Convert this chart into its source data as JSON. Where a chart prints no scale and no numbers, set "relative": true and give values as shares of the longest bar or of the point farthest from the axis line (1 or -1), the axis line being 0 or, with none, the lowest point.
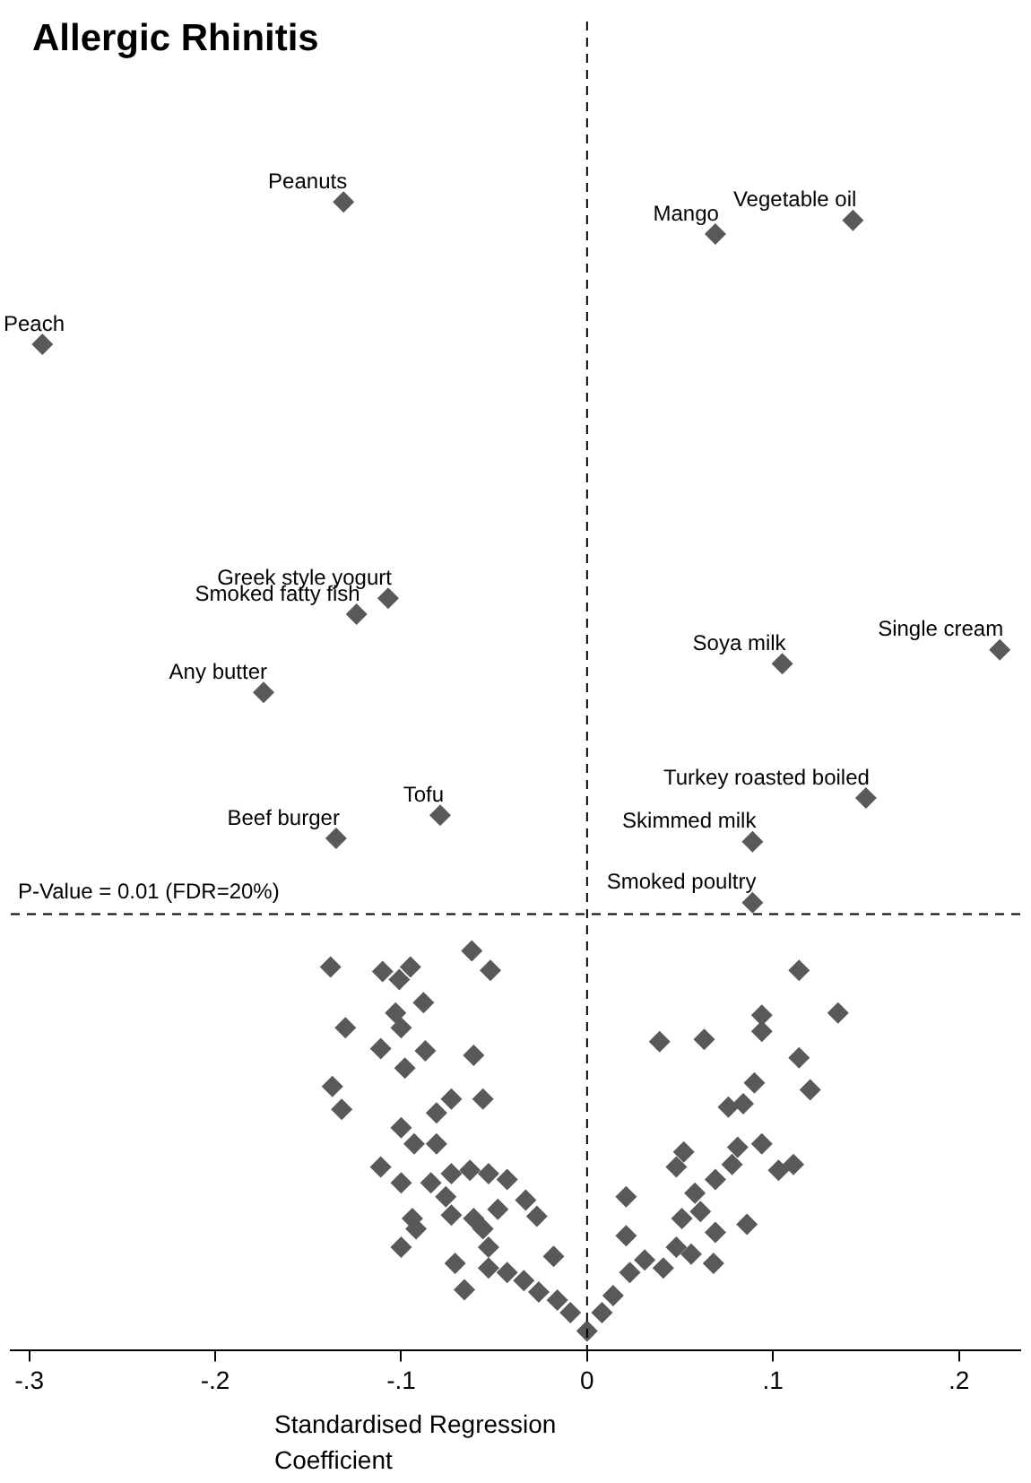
{
  "chart_data": {
    "type": "scatter",
    "title": "Allergic Rhinitis",
    "xlabel": "Standardised Regression Coefficient",
    "relative": true,
    "marker": "diamond",
    "legend": false,
    "tick_labels": "x",
    "xlim": [
      -0.31,
      0.233
    ],
    "xticks": [
      {
        "value": -0.3,
        "label": "-.3"
      },
      {
        "value": -0.2,
        "label": "-.2"
      },
      {
        "value": -0.1,
        "label": "-.1"
      },
      0,
      {
        "value": 0.1,
        "label": ".1"
      },
      {
        "value": 0.2,
        "label": ".2"
      }
    ],
    "ref_lines": [
      {
        "axis": "x",
        "value": 0,
        "line_style": "dashed",
        "color": "#000000"
      },
      {
        "axis": "y",
        "value": 0.38,
        "line_style": "dashed",
        "color": "#000000"
      }
    ],
    "annotations": [
      {
        "text": "Peanuts",
        "x": -0.131,
        "y": 1.0
      },
      {
        "text": "Vegetable oil",
        "x": 0.143,
        "y": 0.984
      },
      {
        "text": "Mango",
        "x": 0.069,
        "y": 0.972
      },
      {
        "text": "Peach",
        "x": -0.293,
        "y": 0.876
      },
      {
        "text": "Greek style yogurt",
        "x": -0.107,
        "y": 0.655
      },
      {
        "text": "Smoked fatty fish",
        "x": -0.124,
        "y": 0.641
      },
      {
        "text": "Single cream",
        "x": 0.222,
        "y": 0.61
      },
      {
        "text": "Any butter",
        "x": -0.174,
        "y": 0.573
      },
      {
        "text": "Soya milk",
        "x": 0.105,
        "y": 0.598
      },
      {
        "text": "Turkey roasted boiled",
        "x": 0.15,
        "y": 0.481
      },
      {
        "text": "Tofu",
        "x": -0.079,
        "y": 0.466
      },
      {
        "text": "Skimmed milk",
        "x": 0.089,
        "y": 0.443
      },
      {
        "text": "Beef burger",
        "x": -0.135,
        "y": 0.446
      },
      {
        "text": "Smoked poultry",
        "x": 0.089,
        "y": 0.39
      },
      {
        "text": "P-Value = 0.01 (FDR=20%)",
        "y": 0.38
      }
    ],
    "series": [
      {
        "color": "#595959",
        "x": [
          -0.131,
          0.143,
          0.069,
          -0.293,
          -0.107,
          -0.124,
          0.222,
          -0.174,
          0.105,
          0.15,
          -0.079,
          0.089,
          -0.135,
          0.089,
          -0.138,
          -0.11,
          -0.101,
          -0.095,
          -0.062,
          -0.052,
          -0.088,
          -0.103,
          -0.13,
          -0.1,
          -0.111,
          -0.087,
          -0.098,
          -0.061,
          -0.137,
          -0.132,
          -0.073,
          -0.056,
          -0.081,
          -0.1,
          -0.093,
          -0.081,
          -0.111,
          -0.1,
          -0.084,
          -0.073,
          -0.063,
          -0.053,
          -0.043,
          -0.076,
          -0.094,
          -0.092,
          -0.073,
          -0.061,
          -0.048,
          -0.033,
          -0.027,
          -0.1,
          -0.056,
          -0.071,
          -0.066,
          -0.053,
          -0.053,
          -0.043,
          -0.034,
          -0.018,
          -0.026,
          -0.016,
          -0.009,
          0.0,
          0.008,
          0.014,
          0.021,
          0.023,
          0.031,
          0.041,
          0.021,
          0.048,
          0.051,
          0.056,
          0.061,
          0.069,
          0.068,
          0.058,
          0.086,
          0.048,
          0.052,
          0.069,
          0.078,
          0.081,
          0.094,
          0.103,
          0.111,
          0.076,
          0.084,
          0.09,
          0.039,
          0.063,
          0.094,
          0.094,
          0.114,
          0.135,
          0.114,
          0.12
        ],
        "values": [
          1.0,
          0.984,
          0.972,
          0.876,
          0.655,
          0.641,
          0.61,
          0.573,
          0.598,
          0.481,
          0.466,
          0.443,
          0.446,
          0.39,
          0.334,
          0.33,
          0.323,
          0.334,
          0.348,
          0.331,
          0.303,
          0.294,
          0.281,
          0.281,
          0.263,
          0.261,
          0.246,
          0.257,
          0.23,
          0.21,
          0.219,
          0.219,
          0.207,
          0.194,
          0.18,
          0.18,
          0.16,
          0.146,
          0.146,
          0.154,
          0.157,
          0.154,
          0.149,
          0.134,
          0.115,
          0.106,
          0.118,
          0.115,
          0.123,
          0.131,
          0.117,
          0.09,
          0.106,
          0.076,
          0.053,
          0.09,
          0.072,
          0.068,
          0.061,
          0.082,
          0.051,
          0.044,
          0.033,
          0.017,
          0.033,
          0.048,
          0.1,
          0.068,
          0.079,
          0.072,
          0.134,
          0.09,
          0.115,
          0.084,
          0.121,
          0.103,
          0.076,
          0.137,
          0.11,
          0.16,
          0.173,
          0.149,
          0.162,
          0.177,
          0.18,
          0.157,
          0.162,
          0.212,
          0.215,
          0.233,
          0.269,
          0.271,
          0.292,
          0.278,
          0.331,
          0.294,
          0.255,
          0.227
        ]
      }
    ]
  }
}
